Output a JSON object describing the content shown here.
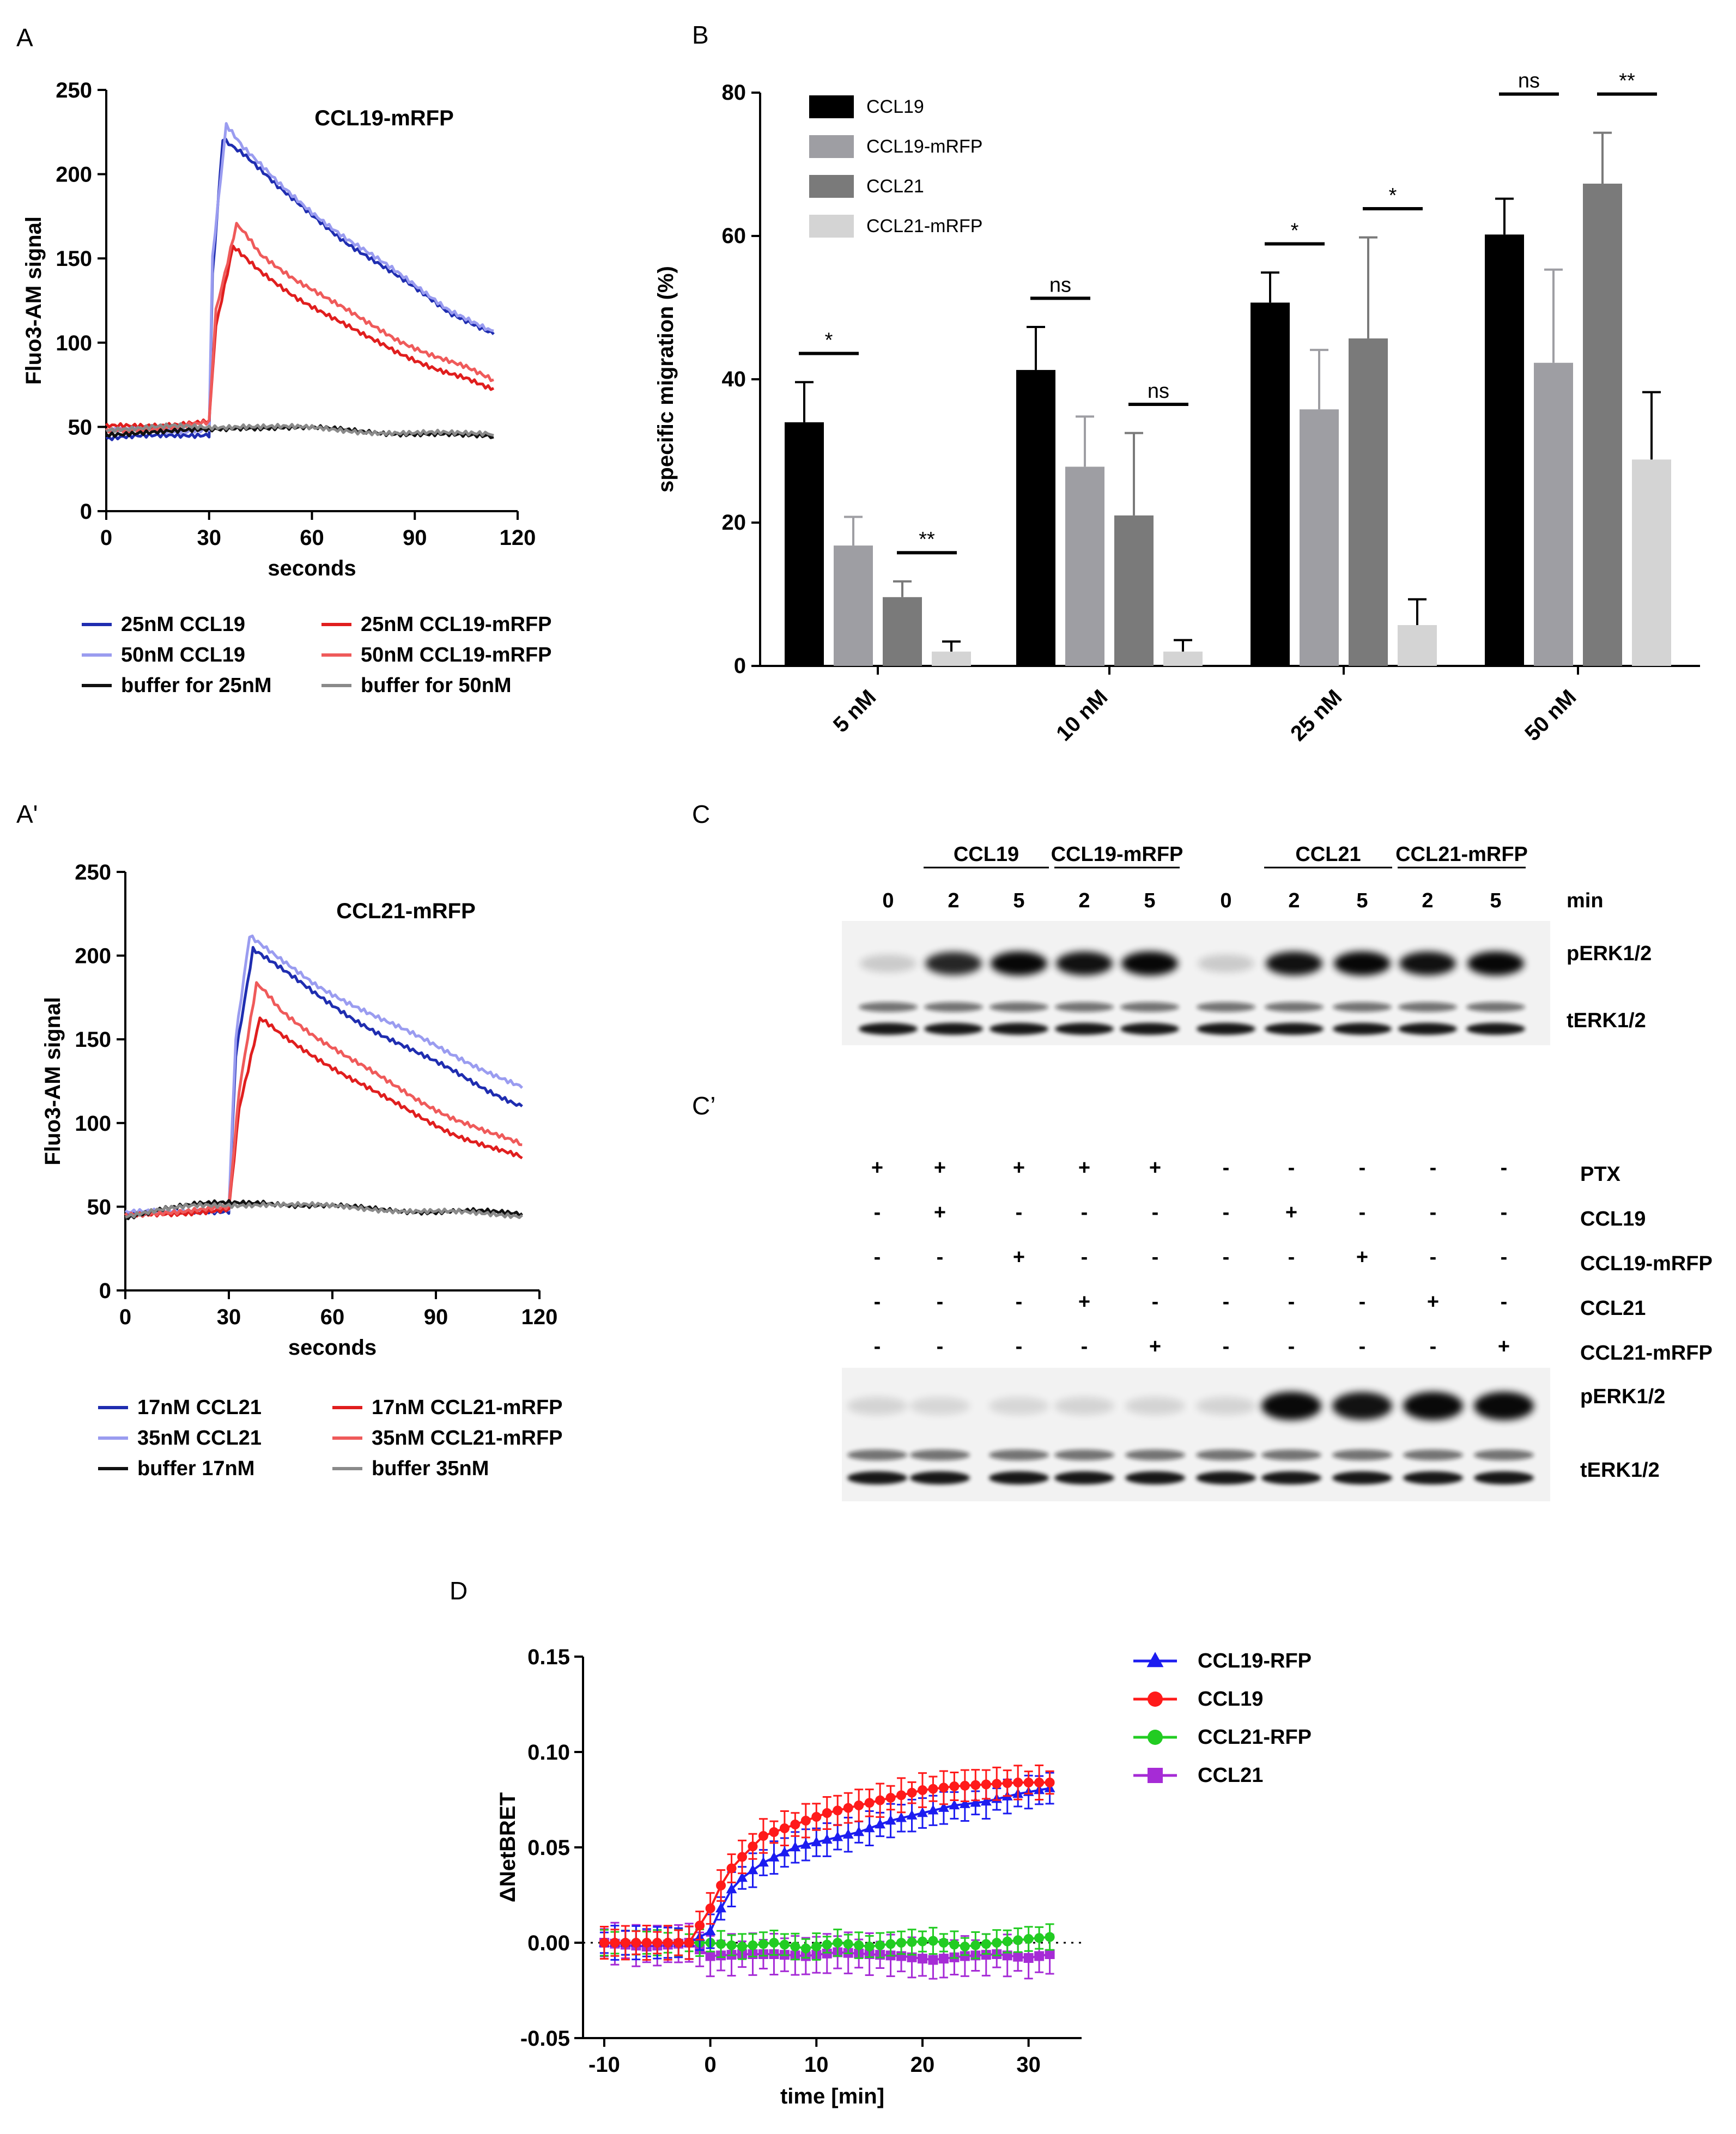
{
  "panels": {
    "A": "A",
    "A_prime": "A'",
    "B": "B",
    "C": "C",
    "C_prime": "C’",
    "D": "D"
  },
  "colors": {
    "blue_dark": "#1f2db0",
    "blue_light": "#9a9cf0",
    "red_dark": "#e01e1e",
    "red_light": "#ef5a5a",
    "black": "#111111",
    "gray": "#8a8a8a",
    "bar1": "#000000",
    "bar2": "#9e9ea3",
    "bar3": "#7a7a7a",
    "bar4": "#d4d4d4",
    "d_blue": "#1c1cf0",
    "d_red": "#ff1a1a",
    "d_green": "#22cc22",
    "d_purple": "#a62bd6"
  },
  "chart_data": [
    {
      "id": "A",
      "type": "line",
      "title": "CCL19-mRFP",
      "xlabel": "seconds",
      "ylabel": "Fluo3-AM signal",
      "xlim": [
        0,
        120
      ],
      "ylim": [
        0,
        250
      ],
      "xticks": [
        "0",
        "30",
        "60",
        "90",
        "120"
      ],
      "yticks": [
        "0",
        "50",
        "100",
        "150",
        "200",
        "250"
      ],
      "series": [
        {
          "name": "25nM CCL19",
          "color": "#1f2db0",
          "x": [
            0,
            10,
            20,
            30,
            31,
            34,
            40,
            50,
            60,
            70,
            80,
            90,
            100,
            113
          ],
          "y": [
            43,
            44,
            45,
            46,
            140,
            222,
            212,
            192,
            176,
            160,
            146,
            132,
            118,
            105
          ]
        },
        {
          "name": "50nM CCL19",
          "color": "#9a9cf0",
          "x": [
            0,
            10,
            20,
            30,
            31,
            35,
            40,
            50,
            60,
            70,
            80,
            90,
            100,
            113
          ],
          "y": [
            47,
            48,
            48,
            49,
            150,
            229,
            215,
            195,
            178,
            162,
            148,
            134,
            120,
            107
          ]
        },
        {
          "name": "25nM CCL19-mRFP",
          "color": "#e01e1e",
          "x": [
            0,
            10,
            20,
            30,
            32,
            37,
            45,
            55,
            65,
            75,
            85,
            95,
            105,
            113
          ],
          "y": [
            50,
            51,
            52,
            53,
            110,
            158,
            142,
            128,
            116,
            104,
            94,
            86,
            79,
            73
          ]
        },
        {
          "name": "50nM CCL19-mRFP",
          "color": "#ef5a5a",
          "x": [
            0,
            10,
            20,
            30,
            32,
            38,
            45,
            55,
            65,
            75,
            85,
            95,
            105,
            113
          ],
          "y": [
            48,
            49,
            50,
            52,
            120,
            170,
            153,
            138,
            125,
            113,
            102,
            93,
            85,
            78
          ]
        },
        {
          "name": "buffer for 25nM",
          "color": "#111111",
          "x": [
            0,
            10,
            20,
            30,
            40,
            50,
            60,
            70,
            80,
            90,
            100,
            113
          ],
          "y": [
            46,
            47,
            47,
            48,
            50,
            50,
            49,
            48,
            47,
            46,
            45,
            44
          ]
        },
        {
          "name": "buffer for 50nM",
          "color": "#8a8a8a",
          "x": [
            0,
            10,
            20,
            30,
            40,
            50,
            60,
            70,
            80,
            90,
            100,
            113
          ],
          "y": [
            49,
            49,
            50,
            50,
            51,
            50,
            49,
            48,
            47,
            46,
            46,
            45
          ]
        }
      ]
    },
    {
      "id": "A_prime",
      "type": "line",
      "title": "CCL21-mRFP",
      "xlabel": "seconds",
      "ylabel": "Fluo3-AM signal",
      "xlim": [
        0,
        120
      ],
      "ylim": [
        0,
        250
      ],
      "xticks": [
        "0",
        "30",
        "60",
        "90",
        "120"
      ],
      "yticks": [
        "0",
        "50",
        "100",
        "150",
        "200",
        "250"
      ],
      "series": [
        {
          "name": "17nM CCL21",
          "color": "#1f2db0",
          "x": [
            0,
            10,
            20,
            30,
            32,
            37,
            45,
            55,
            65,
            75,
            85,
            95,
            105,
            115
          ],
          "y": [
            45,
            46,
            47,
            48,
            140,
            203,
            192,
            177,
            164,
            152,
            141,
            131,
            120,
            110
          ]
        },
        {
          "name": "35nM CCL21",
          "color": "#9a9cf0",
          "x": [
            0,
            10,
            20,
            30,
            32,
            36,
            45,
            55,
            65,
            75,
            85,
            95,
            105,
            115
          ],
          "y": [
            46,
            47,
            48,
            49,
            150,
            211,
            197,
            183,
            172,
            161,
            151,
            141,
            131,
            121
          ]
        },
        {
          "name": "17nM CCL21-mRFP",
          "color": "#e01e1e",
          "x": [
            0,
            10,
            20,
            30,
            33,
            39,
            45,
            55,
            65,
            75,
            85,
            95,
            105,
            115
          ],
          "y": [
            44,
            46,
            47,
            48,
            110,
            162,
            153,
            140,
            127,
            115,
            104,
            94,
            86,
            79
          ]
        },
        {
          "name": "35nM CCL21-mRFP",
          "color": "#ef5a5a",
          "x": [
            0,
            10,
            20,
            30,
            33,
            38,
            45,
            55,
            65,
            75,
            85,
            95,
            105,
            115
          ],
          "y": [
            45,
            47,
            48,
            49,
            120,
            183,
            168,
            152,
            138,
            126,
            114,
            103,
            94,
            87
          ]
        },
        {
          "name": "buffer 17nM",
          "color": "#111111",
          "x": [
            0,
            10,
            20,
            30,
            40,
            50,
            60,
            70,
            80,
            90,
            100,
            115
          ],
          "y": [
            44,
            49,
            51,
            52,
            53,
            51,
            50,
            49,
            48,
            47,
            47,
            46
          ]
        },
        {
          "name": "buffer 35nM",
          "color": "#8a8a8a",
          "x": [
            0,
            10,
            20,
            30,
            40,
            50,
            60,
            70,
            80,
            90,
            100,
            115
          ],
          "y": [
            45,
            48,
            50,
            51,
            52,
            51,
            50,
            49,
            48,
            47,
            46,
            45
          ]
        }
      ]
    },
    {
      "id": "B",
      "type": "bar",
      "ylabel": "specific migration (%)",
      "ylim": [
        0,
        80
      ],
      "yticks": [
        "0",
        "20",
        "40",
        "60",
        "80"
      ],
      "categories": [
        "5 nM",
        "10 nM",
        "25 nM",
        "50 nM"
      ],
      "series": [
        {
          "name": "CCL19",
          "color": "#000000",
          "values": [
            34,
            41.3,
            50.7,
            60.2
          ],
          "errors": [
            5.6,
            6,
            4.2,
            5
          ]
        },
        {
          "name": "CCL19-mRFP",
          "color": "#9e9ea3",
          "values": [
            16.8,
            27.8,
            35.8,
            42.3
          ],
          "errors": [
            4,
            7,
            8.3,
            13
          ]
        },
        {
          "name": "CCL21",
          "color": "#7a7a7a",
          "values": [
            9.6,
            21,
            45.7,
            67.3
          ],
          "errors": [
            2.2,
            11.5,
            14.1,
            7.1
          ]
        },
        {
          "name": "CCL21-mRFP",
          "color": "#d4d4d4",
          "values": [
            2,
            2,
            5.7,
            28.8
          ],
          "errors": [
            1.4,
            1.6,
            3.6,
            9.4
          ]
        }
      ],
      "significance": [
        {
          "group": 0,
          "pair": "left",
          "label": "*"
        },
        {
          "group": 0,
          "pair": "right",
          "label": "**"
        },
        {
          "group": 1,
          "pair": "left",
          "label": "ns"
        },
        {
          "group": 1,
          "pair": "right",
          "label": "ns"
        },
        {
          "group": 2,
          "pair": "left",
          "label": "*"
        },
        {
          "group": 2,
          "pair": "right",
          "label": "*"
        },
        {
          "group": 3,
          "pair": "left",
          "label": "ns"
        },
        {
          "group": 3,
          "pair": "right",
          "label": "**"
        }
      ]
    },
    {
      "id": "D",
      "type": "line",
      "xlabel": "time [min]",
      "ylabel": "ΔNetBRET",
      "xlim": [
        -12,
        35
      ],
      "ylim": [
        -0.05,
        0.15
      ],
      "xticks": [
        "-10",
        "0",
        "10",
        "20",
        "30"
      ],
      "yticks": [
        "-0.05",
        "0.00",
        "0.05",
        "0.10",
        "0.15"
      ],
      "series": [
        {
          "name": "CCL19-RFP",
          "color": "#1c1cf0",
          "marker": "triangle",
          "x": [
            -10,
            -6,
            -2,
            0,
            1,
            2,
            3,
            5,
            8,
            11,
            14,
            17,
            20,
            23,
            26,
            29,
            32
          ],
          "y": [
            0,
            0,
            0,
            0.006,
            0.018,
            0.028,
            0.034,
            0.042,
            0.05,
            0.054,
            0.058,
            0.064,
            0.068,
            0.072,
            0.074,
            0.078,
            0.081
          ],
          "err": 0.009
        },
        {
          "name": "CCL19",
          "color": "#ff1a1a",
          "marker": "circle",
          "x": [
            -10,
            -6,
            -2,
            0,
            1,
            2,
            3,
            5,
            8,
            11,
            14,
            17,
            20,
            23,
            26,
            29,
            32
          ],
          "y": [
            0,
            0,
            0,
            0.018,
            0.03,
            0.039,
            0.045,
            0.056,
            0.062,
            0.068,
            0.072,
            0.076,
            0.08,
            0.082,
            0.083,
            0.084,
            0.084
          ],
          "err": 0.009
        },
        {
          "name": "CCL21-RFP",
          "color": "#22cc22",
          "marker": "circle",
          "x": [
            -10,
            -6,
            -2,
            0,
            3,
            6,
            9,
            12,
            15,
            18,
            21,
            24,
            27,
            30,
            32
          ],
          "y": [
            0,
            0,
            0,
            0,
            -0.002,
            0,
            -0.003,
            0,
            -0.002,
            0,
            0.001,
            -0.002,
            0,
            0.002,
            0.003
          ],
          "err": 0.007
        },
        {
          "name": "CCL21",
          "color": "#a62bd6",
          "marker": "square",
          "x": [
            -10,
            -6,
            -2,
            0,
            3,
            6,
            9,
            12,
            15,
            18,
            21,
            24,
            27,
            30,
            32
          ],
          "y": [
            0,
            -0.002,
            0,
            -0.007,
            -0.006,
            -0.006,
            -0.007,
            -0.005,
            -0.006,
            -0.007,
            -0.009,
            -0.007,
            -0.006,
            -0.008,
            -0.006
          ],
          "err": 0.011
        }
      ]
    }
  ],
  "blot_C": {
    "groups": [
      "CCL19",
      "CCL19-mRFP",
      "CCL21",
      "CCL21-mRFP"
    ],
    "times": [
      "0",
      "2",
      "5",
      "2",
      "5",
      "0",
      "2",
      "5",
      "2",
      "5"
    ],
    "unit": "min",
    "rows": [
      "pERK1/2",
      "tERK1/2"
    ],
    "pERK_intensity": [
      0.05,
      0.85,
      1,
      0.95,
      1,
      0.05,
      0.95,
      1,
      0.95,
      1
    ]
  },
  "blot_Cp": {
    "conditions": [
      {
        "label": "PTX",
        "marks": [
          "+",
          "+",
          "+",
          "+",
          "+",
          "-",
          "-",
          "-",
          "-",
          "-"
        ]
      },
      {
        "label": "CCL19",
        "marks": [
          "-",
          "+",
          "-",
          "-",
          "-",
          "-",
          "+",
          "-",
          "-",
          "-"
        ]
      },
      {
        "label": "CCL19-mRFP",
        "marks": [
          "-",
          "-",
          "+",
          "-",
          "-",
          "-",
          "-",
          "+",
          "-",
          "-"
        ]
      },
      {
        "label": "CCL21",
        "marks": [
          "-",
          "-",
          "-",
          "+",
          "-",
          "-",
          "-",
          "-",
          "+",
          "-"
        ]
      },
      {
        "label": "CCL21-mRFP",
        "marks": [
          "-",
          "-",
          "-",
          "-",
          "+",
          "-",
          "-",
          "-",
          "-",
          "+"
        ]
      }
    ],
    "rows": [
      "pERK1/2",
      "tERK1/2"
    ],
    "pERK_intensity": [
      0.04,
      0.03,
      0.03,
      0.04,
      0.04,
      0.04,
      1,
      0.95,
      1,
      1
    ]
  }
}
